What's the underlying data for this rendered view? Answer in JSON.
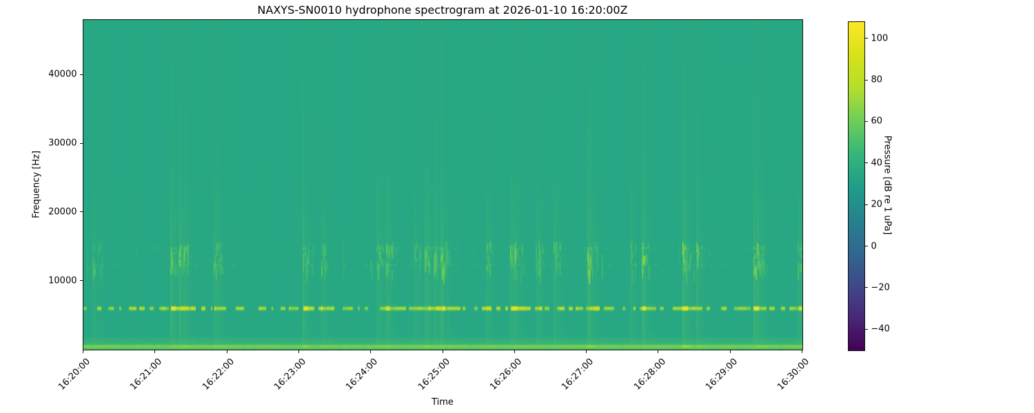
{
  "chart_data": {
    "type": "heatmap",
    "subtype": "spectrogram",
    "title": "NAXYS-SN0010 hydrophone spectrogram at 2026-01-10 16:20:00Z",
    "xlabel": "Time",
    "ylabel": "Frequency [Hz]",
    "x_ticks": [
      "16:20:00",
      "16:21:00",
      "16:22:00",
      "16:23:00",
      "16:24:00",
      "16:25:00",
      "16:26:00",
      "16:27:00",
      "16:28:00",
      "16:29:00",
      "16:30:00"
    ],
    "x_tick_rotation_deg": 45,
    "y_ticks": [
      10000,
      20000,
      30000,
      40000
    ],
    "y_tick_labels": [
      "10000",
      "20000",
      "30000",
      "40000"
    ],
    "freq_range_hz": [
      0,
      48000
    ],
    "time_range": [
      "16:20:00",
      "16:30:00"
    ],
    "grid": false,
    "legend": "none",
    "colormap": "viridis",
    "colormap_stops": [
      [
        0.0,
        "#440154"
      ],
      [
        0.1,
        "#482878"
      ],
      [
        0.2,
        "#3e4a89"
      ],
      [
        0.3,
        "#31688e"
      ],
      [
        0.4,
        "#26828e"
      ],
      [
        0.5,
        "#1f9e89"
      ],
      [
        0.6,
        "#35b779"
      ],
      [
        0.7,
        "#6ece58"
      ],
      [
        0.8,
        "#b5de2b"
      ],
      [
        0.9,
        "#d8e219"
      ],
      [
        1.0,
        "#fde725"
      ]
    ],
    "colorbar": {
      "label": "Pressure [dB re 1 uPa]",
      "ticks": [
        100,
        80,
        60,
        40,
        20,
        0,
        -20,
        -40
      ],
      "tick_labels": [
        "100",
        "80",
        "60",
        "40",
        "20",
        "0",
        "−20",
        "−40"
      ],
      "vmin": -50,
      "vmax": 108
    },
    "background_level_db": 35,
    "features": {
      "tonal_band_hz": 6000,
      "tonal_band_peak_db": 97,
      "transient_band_hz": [
        11500,
        15800
      ],
      "transient_row_hz": [
        12300,
        14800
      ],
      "transient_band_db": 65,
      "low_freq_band_hz": [
        0,
        2600
      ],
      "low_freq_peak_db": 68,
      "vertical_transients": "faint broadband click-train streaks in clustered bursts across the whole 10-minute window, strongest below 16 kHz",
      "seed": 1337
    }
  }
}
